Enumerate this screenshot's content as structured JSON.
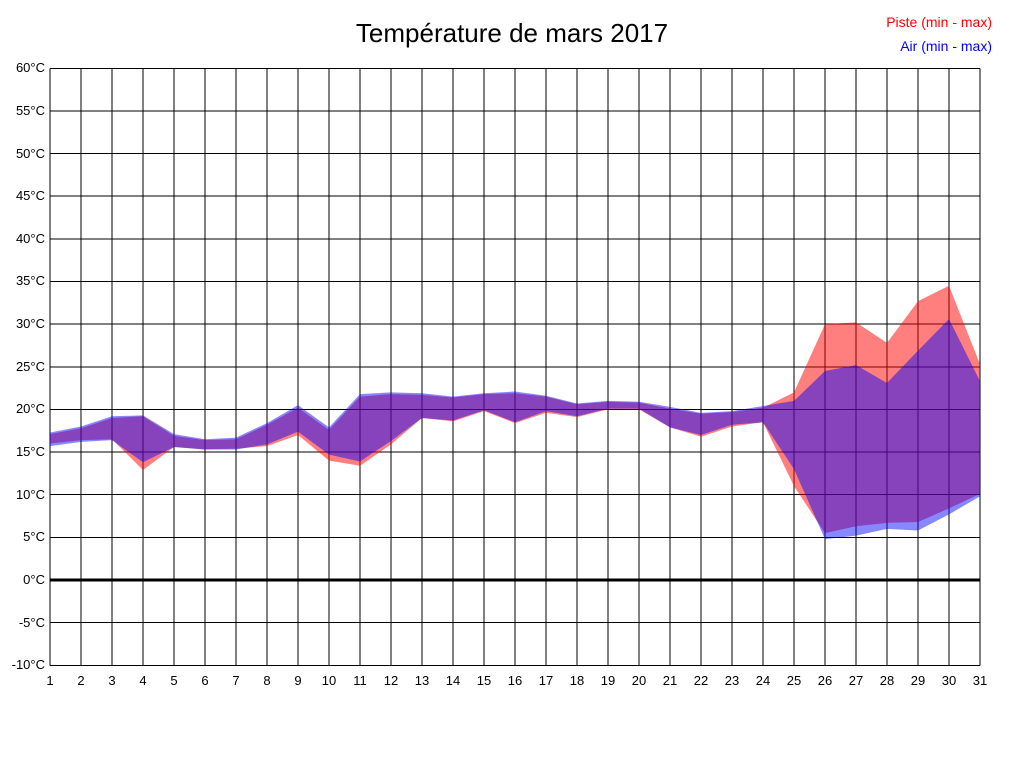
{
  "title": "Température de mars 2017",
  "legend": {
    "piste_label": "Piste (min - max)",
    "air_label": "Air (min - max)",
    "piste_color": "#ff0000",
    "air_color": "#0000ff"
  },
  "axes": {
    "ytick_labels": [
      "60°C",
      "55°C",
      "50°C",
      "45°C",
      "40°C",
      "35°C",
      "30°C",
      "25°C",
      "20°C",
      "15°C",
      "10°C",
      "5°C",
      "0°C",
      "-5°C",
      "-10°C"
    ],
    "xtick_labels": [
      "1",
      "2",
      "3",
      "4",
      "5",
      "6",
      "7",
      "8",
      "9",
      "10",
      "11",
      "12",
      "13",
      "14",
      "15",
      "16",
      "17",
      "18",
      "19",
      "20",
      "21",
      "22",
      "23",
      "24",
      "25",
      "26",
      "27",
      "28",
      "29",
      "30",
      "31"
    ]
  },
  "colors": {
    "grid": "#000000",
    "zero_line": "#000000",
    "background": "#ffffff"
  },
  "chart_data": {
    "type": "area",
    "title": "Température de mars 2017",
    "xlabel": "",
    "ylabel": "",
    "x": [
      1,
      2,
      3,
      4,
      5,
      6,
      7,
      8,
      9,
      10,
      11,
      12,
      13,
      14,
      15,
      16,
      17,
      18,
      19,
      20,
      21,
      22,
      23,
      24,
      25,
      26,
      27,
      28,
      29,
      30,
      31
    ],
    "ylim": [
      -10,
      60
    ],
    "ytick_step": 5,
    "grid": true,
    "zero_line_at": 0,
    "legend_position": "top-right",
    "series": [
      {
        "name": "Piste (min - max)",
        "color": "#ff0000",
        "fill_opacity": 0.5,
        "min": [
          16.0,
          16.4,
          16.5,
          12.9,
          15.6,
          15.3,
          15.4,
          15.7,
          17.0,
          14.0,
          13.4,
          15.9,
          19.0,
          18.6,
          19.8,
          18.4,
          19.6,
          19.1,
          20.0,
          20.0,
          17.9,
          16.8,
          18.0,
          18.5,
          11.0,
          5.5,
          6.3,
          6.7,
          6.8,
          8.4,
          10.1
        ],
        "max": [
          17.1,
          17.8,
          19.0,
          19.2,
          16.9,
          16.4,
          16.5,
          18.2,
          20.2,
          17.6,
          21.5,
          21.8,
          21.7,
          21.4,
          21.8,
          21.9,
          21.5,
          20.6,
          20.9,
          20.8,
          20.1,
          19.5,
          19.7,
          20.2,
          22.0,
          30.0,
          30.2,
          27.8,
          32.7,
          34.5,
          25.3
        ]
      },
      {
        "name": "Air (min - max)",
        "color": "#0000ff",
        "fill_opacity": 0.47,
        "min": [
          15.7,
          16.2,
          16.4,
          13.8,
          15.6,
          15.3,
          15.3,
          15.9,
          17.4,
          14.7,
          13.9,
          16.3,
          19.0,
          18.7,
          19.9,
          18.5,
          19.8,
          19.2,
          20.1,
          20.1,
          17.9,
          17.0,
          18.2,
          18.5,
          13.0,
          4.8,
          5.2,
          6.0,
          5.8,
          7.7,
          9.8
        ],
        "max": [
          17.3,
          18.0,
          19.2,
          19.3,
          17.1,
          16.5,
          16.7,
          18.4,
          20.5,
          17.9,
          21.8,
          22.0,
          21.9,
          21.5,
          21.9,
          22.1,
          21.6,
          20.7,
          21.0,
          20.9,
          20.3,
          19.6,
          19.8,
          20.4,
          21.0,
          24.5,
          25.2,
          23.1,
          26.9,
          30.6,
          23.3
        ]
      }
    ]
  }
}
